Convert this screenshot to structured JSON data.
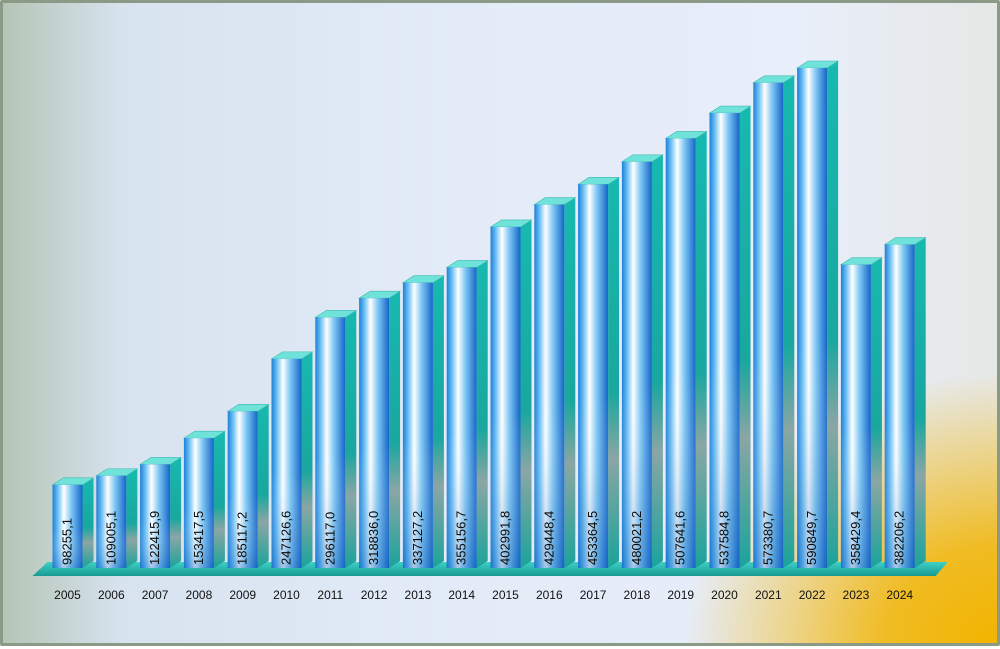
{
  "chart_data": {
    "type": "bar",
    "style": "3d-cylinder",
    "categories": [
      "2005",
      "2006",
      "2007",
      "2008",
      "2009",
      "2010",
      "2011",
      "2012",
      "2013",
      "2014",
      "2015",
      "2016",
      "2017",
      "2018",
      "2019",
      "2020",
      "2021",
      "2022",
      "2023",
      "2024"
    ],
    "values": [
      98255.1,
      109005.1,
      122415.9,
      153417.5,
      185117.2,
      247126.6,
      296117.0,
      318836.0,
      337127.2,
      355156.7,
      402991.8,
      429448.4,
      453364.5,
      480021.2,
      507641.6,
      537584.8,
      573380.7,
      590849.7,
      358429.4,
      382206.2
    ],
    "value_labels": [
      "98255,1",
      "109005,1",
      "122415,9",
      "153417,5",
      "185117,2",
      "247126,6",
      "296117,0",
      "318836,0",
      "337127,2",
      "355156,7",
      "402991,8",
      "429448,4",
      "453364,5",
      "480021,2",
      "507641,6",
      "537584,8",
      "573380,7",
      "590849,7",
      "358429,4",
      "382206,2"
    ],
    "title": "",
    "xlabel": "",
    "ylabel": "",
    "ylim": [
      0,
      600000
    ],
    "grid": false,
    "legend": "none",
    "colors": {
      "bar_front": "#2a8fe0",
      "bar_highlight": "#ffffff",
      "bar_side": "#1aa9a0",
      "bar_top": "#5fe0d8",
      "floor": "#22b3a9",
      "frame_border": "#8a9a86",
      "accent_corner": "#f2b400"
    }
  }
}
